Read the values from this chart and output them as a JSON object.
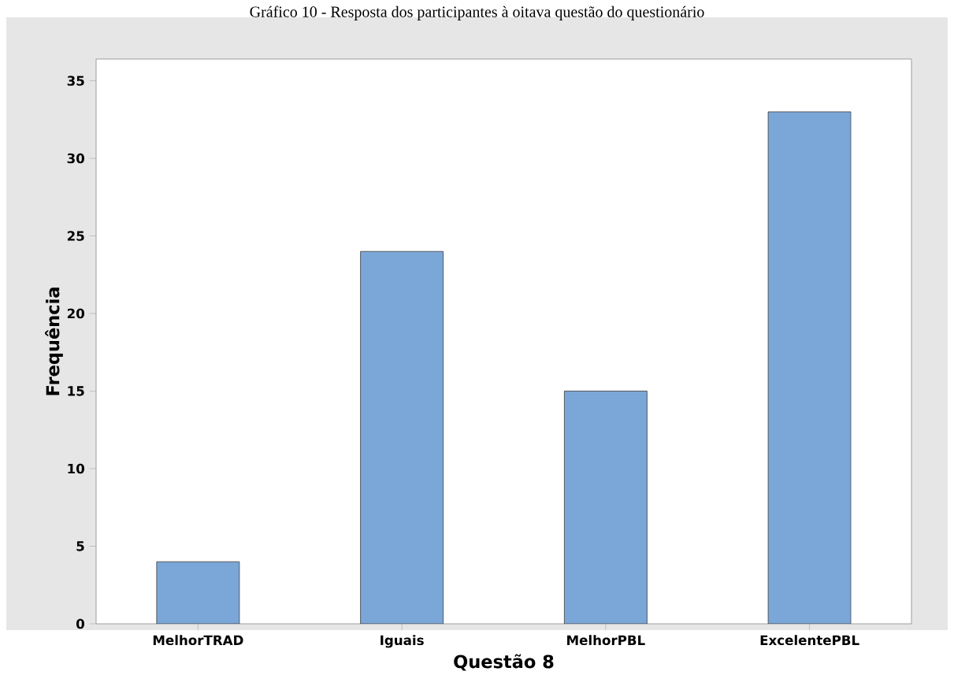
{
  "chart_data": {
    "type": "bar",
    "title": "Gráfico 10 - Resposta dos participantes à oitava questão do questionário",
    "xlabel": "Questão 8",
    "ylabel": "Frequência",
    "categories": [
      "MelhorTRAD",
      "Iguais",
      "MelhorPBL",
      "ExcelentePBL"
    ],
    "values": [
      4,
      24,
      15,
      33
    ],
    "color": "#7ba7d8",
    "ylim": [
      0,
      36.4
    ],
    "yticks": [
      0,
      5,
      10,
      15,
      20,
      25,
      30,
      35
    ],
    "grid": false
  }
}
